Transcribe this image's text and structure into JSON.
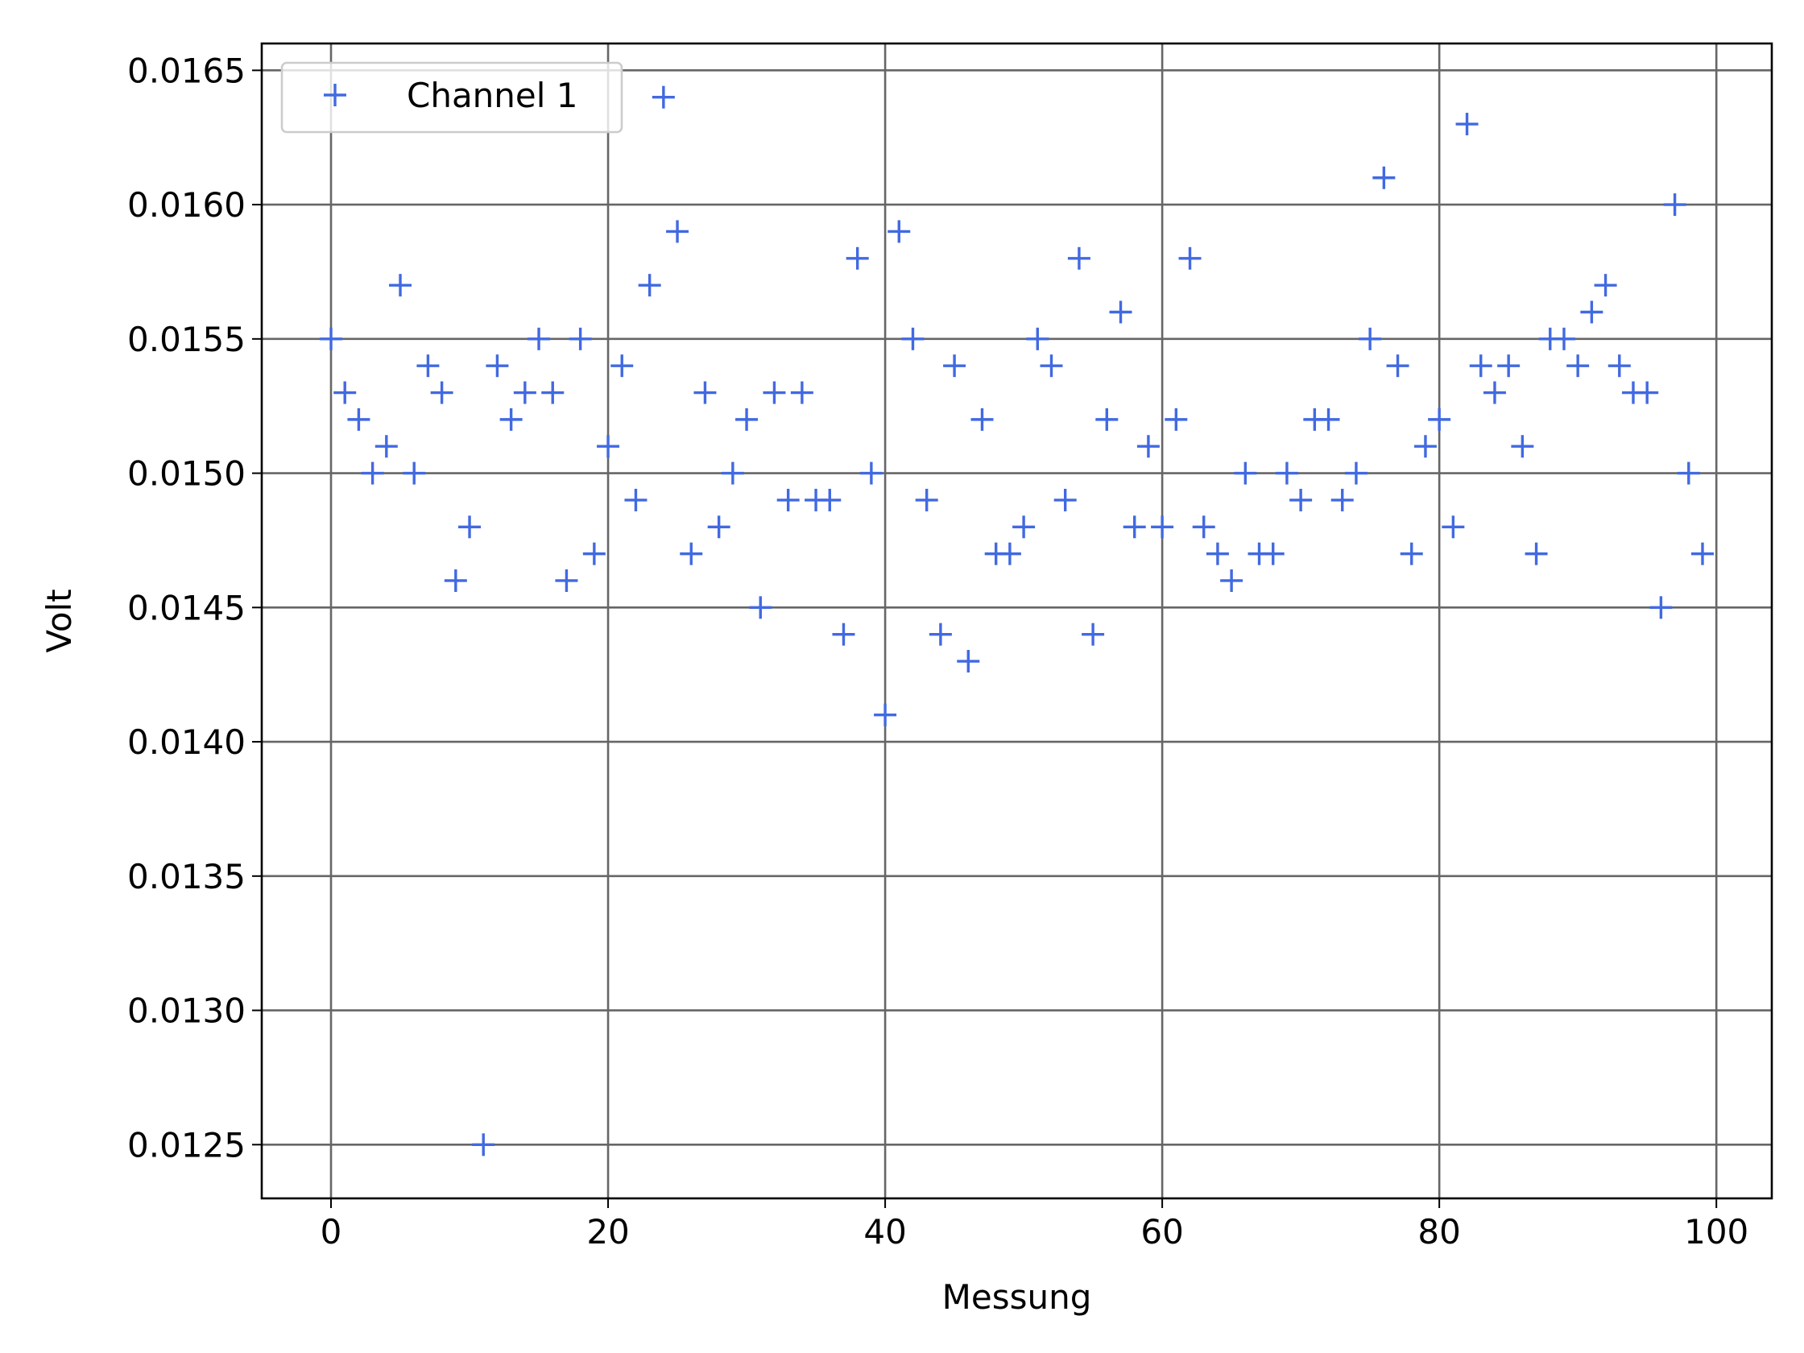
{
  "chart_data": {
    "type": "scatter",
    "title": "",
    "xlabel": "Messung",
    "ylabel": "Volt",
    "xlim": [
      -5,
      104
    ],
    "ylim": [
      0.0123,
      0.0166
    ],
    "xticks": [
      0,
      20,
      40,
      60,
      80,
      100
    ],
    "xtick_labels": [
      "0",
      "20",
      "40",
      "60",
      "80",
      "100"
    ],
    "yticks": [
      0.0125,
      0.013,
      0.0135,
      0.014,
      0.0145,
      0.015,
      0.0155,
      0.016,
      0.0165
    ],
    "ytick_labels": [
      "0.0125",
      "0.0130",
      "0.0135",
      "0.0140",
      "0.0145",
      "0.0150",
      "0.0155",
      "0.0160",
      "0.0165"
    ],
    "grid": true,
    "legend_position": "upper-left",
    "marker": "+",
    "series": [
      {
        "name": "Channel 1",
        "color": "#4169e1",
        "x": [
          0,
          1,
          2,
          3,
          4,
          5,
          6,
          7,
          8,
          9,
          10,
          11,
          12,
          13,
          14,
          15,
          16,
          17,
          18,
          19,
          20,
          21,
          22,
          23,
          24,
          25,
          26,
          27,
          28,
          29,
          30,
          31,
          32,
          33,
          34,
          35,
          36,
          37,
          38,
          39,
          40,
          41,
          42,
          43,
          44,
          45,
          46,
          47,
          48,
          49,
          50,
          51,
          52,
          53,
          54,
          55,
          56,
          57,
          58,
          59,
          60,
          61,
          62,
          63,
          64,
          65,
          66,
          67,
          68,
          69,
          70,
          71,
          72,
          73,
          74,
          75,
          76,
          77,
          78,
          79,
          80,
          81,
          82,
          83,
          84,
          85,
          86,
          87,
          88,
          89,
          90,
          91,
          92,
          93,
          94,
          95,
          96,
          97,
          98,
          99
        ],
        "y": [
          0.0155,
          0.0153,
          0.0152,
          0.015,
          0.0151,
          0.0157,
          0.015,
          0.0154,
          0.0153,
          0.0146,
          0.0148,
          0.0125,
          0.0154,
          0.0152,
          0.0153,
          0.0155,
          0.0153,
          0.0146,
          0.0155,
          0.0147,
          0.0151,
          0.0154,
          0.0149,
          0.0157,
          0.0164,
          0.0159,
          0.0147,
          0.0153,
          0.0148,
          0.015,
          0.0152,
          0.0145,
          0.0153,
          0.0149,
          0.0153,
          0.0149,
          0.0149,
          0.0144,
          0.0158,
          0.015,
          0.0141,
          0.0159,
          0.0155,
          0.0149,
          0.0144,
          0.0154,
          0.0143,
          0.0152,
          0.0147,
          0.0147,
          0.0148,
          0.0155,
          0.0154,
          0.0149,
          0.0158,
          0.0144,
          0.0152,
          0.0156,
          0.0148,
          0.0151,
          0.0148,
          0.0152,
          0.0158,
          0.0148,
          0.0147,
          0.0146,
          0.015,
          0.0147,
          0.0147,
          0.015,
          0.0149,
          0.0152,
          0.0152,
          0.0149,
          0.015,
          0.0155,
          0.0161,
          0.0154,
          0.0147,
          0.0151,
          0.0152,
          0.0148,
          0.0163,
          0.0154,
          0.0153,
          0.0154,
          0.0151,
          0.0147,
          0.0155,
          0.0155,
          0.0154,
          0.0156,
          0.0157,
          0.0154,
          0.0153,
          0.0153,
          0.0145,
          0.016,
          0.015,
          0.0147
        ]
      }
    ]
  }
}
